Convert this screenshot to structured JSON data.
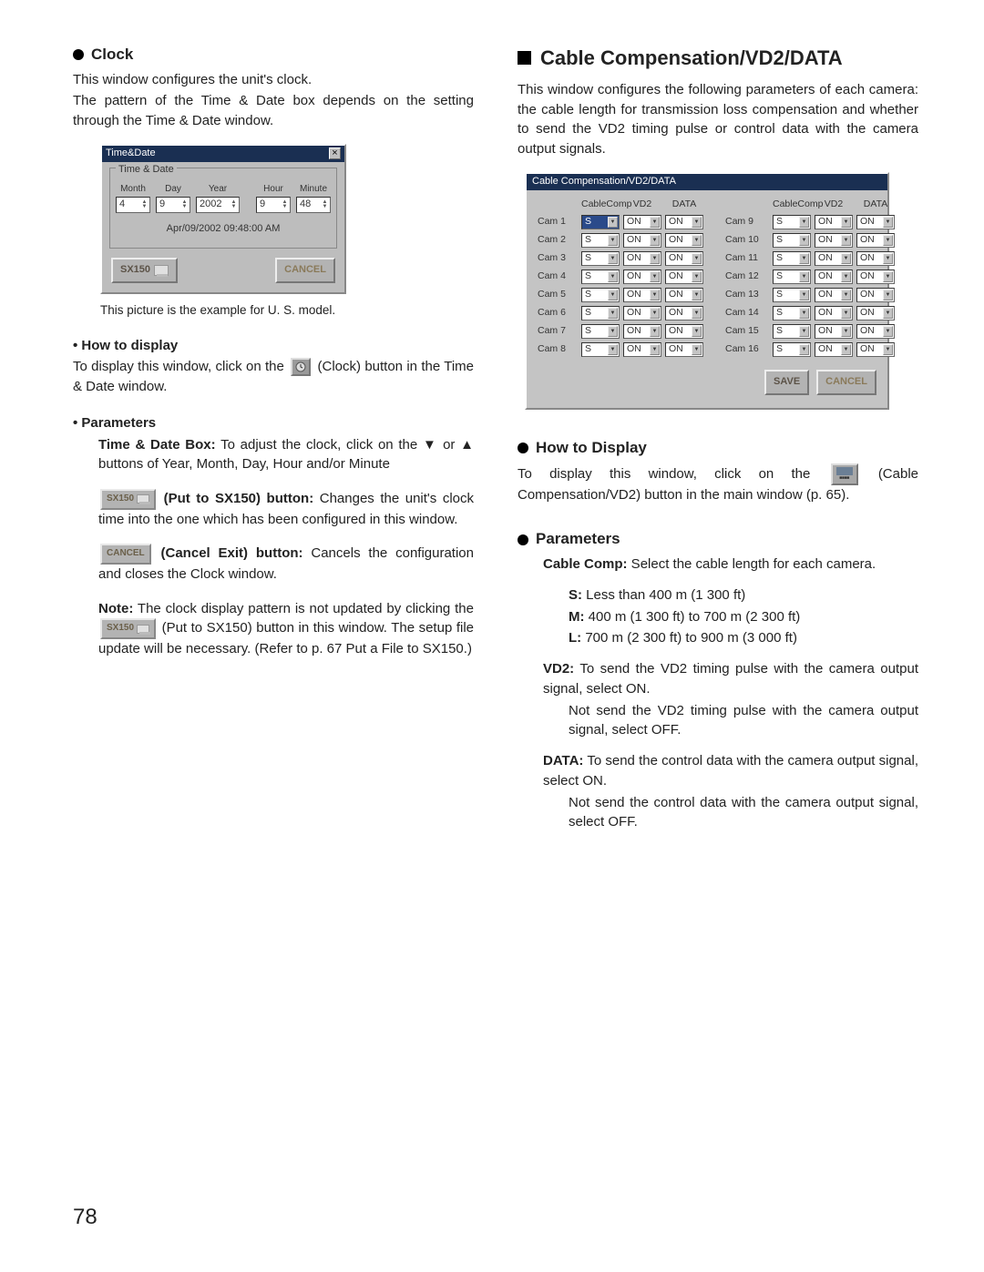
{
  "page_number": "78",
  "left": {
    "h_clock": "Clock",
    "intro1": "This window configures the unit's clock.",
    "intro2": "The pattern of the Time & Date box depends on the setting through the Time & Date window.",
    "dlg": {
      "title": "Time&Date",
      "fieldset": "Time & Date",
      "month_l": "Month",
      "day_l": "Day",
      "year_l": "Year",
      "hour_l": "Hour",
      "min_l": "Minute",
      "month_v": "4",
      "day_v": "9",
      "year_v": "2002",
      "hour_v": "9",
      "min_v": "48",
      "preview": "Apr/09/2002  09:48:00 AM",
      "sx150": "SX150",
      "cancel": "CANCEL",
      "close": "×"
    },
    "caption": "This picture is the example for U. S. model.",
    "howto_h": "• How to display",
    "howto_p1": "To display this window, click on the ",
    "howto_p2": " (Clock) button in the Time & Date window.",
    "params_h": "• Parameters",
    "tdbox_l": "Time & Date Box:",
    "tdbox_t": " To adjust the clock, click on the ▼ or ▲ buttons of Year, Month, Day, Hour and/or Minute",
    "put_l": "(Put to SX150) button:",
    "put_t": " Changes the unit's clock time into the one which has been configured in this window.",
    "cancel_l": "(Cancel Exit) button:",
    "cancel_t": " Cancels the configuration and closes the Clock window.",
    "note_l": "Note:",
    "note_t1": " The clock display pattern is not updated by clicking the ",
    "note_t2": " (Put to SX150) button in this window. The setup file update will be necessary. (Refer to p. 67 Put a File to SX150.)",
    "sx150_btn": "SX150",
    "cancel_btn": "CANCEL"
  },
  "right": {
    "h_main": "Cable Compensation/VD2/DATA",
    "intro": "This window configures the following parameters of each camera: the cable length for transmission loss compensation and whether to send the VD2 timing pulse or control data with the camera output signals.",
    "dlg": {
      "title": "Cable Compensation/VD2/DATA",
      "hd_cc": "CableComp",
      "hd_vd2": "VD2",
      "hd_data": "DATA",
      "rows_left": [
        {
          "cam": "Cam 1",
          "cc": "S",
          "vd2": "ON",
          "data": "ON",
          "sel": true
        },
        {
          "cam": "Cam 2",
          "cc": "S",
          "vd2": "ON",
          "data": "ON"
        },
        {
          "cam": "Cam 3",
          "cc": "S",
          "vd2": "ON",
          "data": "ON"
        },
        {
          "cam": "Cam 4",
          "cc": "S",
          "vd2": "ON",
          "data": "ON"
        },
        {
          "cam": "Cam 5",
          "cc": "S",
          "vd2": "ON",
          "data": "ON"
        },
        {
          "cam": "Cam 6",
          "cc": "S",
          "vd2": "ON",
          "data": "ON"
        },
        {
          "cam": "Cam 7",
          "cc": "S",
          "vd2": "ON",
          "data": "ON"
        },
        {
          "cam": "Cam 8",
          "cc": "S",
          "vd2": "ON",
          "data": "ON"
        }
      ],
      "rows_right": [
        {
          "cam": "Cam  9",
          "cc": "S",
          "vd2": "ON",
          "data": "ON"
        },
        {
          "cam": "Cam 10",
          "cc": "S",
          "vd2": "ON",
          "data": "ON"
        },
        {
          "cam": "Cam 11",
          "cc": "S",
          "vd2": "ON",
          "data": "ON"
        },
        {
          "cam": "Cam 12",
          "cc": "S",
          "vd2": "ON",
          "data": "ON"
        },
        {
          "cam": "Cam 13",
          "cc": "S",
          "vd2": "ON",
          "data": "ON"
        },
        {
          "cam": "Cam 14",
          "cc": "S",
          "vd2": "ON",
          "data": "ON"
        },
        {
          "cam": "Cam 15",
          "cc": "S",
          "vd2": "ON",
          "data": "ON"
        },
        {
          "cam": "Cam 16",
          "cc": "S",
          "vd2": "ON",
          "data": "ON"
        }
      ],
      "save": "SAVE",
      "cancel": "CANCEL"
    },
    "howto_h": "How to Display",
    "howto_p1": "To display this window, click on the ",
    "howto_p2": " (Cable Compensation/VD2) button in the main window (p. 65).",
    "params_h": "Parameters",
    "cc_l": "Cable Comp:",
    "cc_t": " Select the cable length for each camera.",
    "s_l": "S:",
    "s_t": " Less than 400 m (1 300 ft)",
    "m_l": "M:",
    "m_t": " 400 m (1 300 ft) to 700 m (2 300 ft)",
    "l_l": "L:",
    "l_t": " 700 m (2 300 ft) to 900 m (3 000 ft)",
    "vd2_l": "VD2:",
    "vd2_t1": " To send the VD2 timing pulse with the camera output signal, select ON.",
    "vd2_t2": "Not send the VD2 timing pulse with the camera output signal, select OFF.",
    "data_l": "DATA:",
    "data_t1": " To send the control data with the camera output signal, select ON.",
    "data_t2": "Not send the control data with the camera output signal, select OFF."
  }
}
